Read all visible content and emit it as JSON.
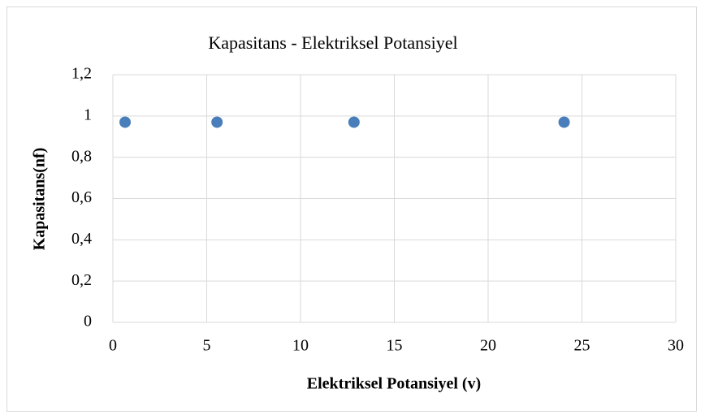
{
  "chart_data": {
    "type": "scatter",
    "title": "Kapasitans - Elektriksel Potansiyel",
    "x_label": "Elektriksel Potansiyel (v)",
    "y_label": "Kapasitans(nf)",
    "series": [
      {
        "color": "#4a7ebb",
        "x": [
          0.65,
          5.55,
          12.85,
          24.05
        ],
        "values": [
          0.97,
          0.97,
          0.97,
          0.97
        ]
      }
    ],
    "xlim": [
      0,
      30
    ],
    "xticks": [
      0,
      5,
      10,
      15,
      20,
      25,
      30
    ],
    "ylim": [
      0,
      1.2
    ],
    "yticks": [
      0,
      {
        "value": 0.2,
        "label": "0,2"
      },
      {
        "value": 0.4,
        "label": "0,4"
      },
      {
        "value": 0.6,
        "label": "0,6"
      },
      {
        "value": 0.8,
        "label": "0,8"
      },
      1,
      {
        "value": 1.2,
        "label": "1,2"
      }
    ],
    "grid": true
  }
}
